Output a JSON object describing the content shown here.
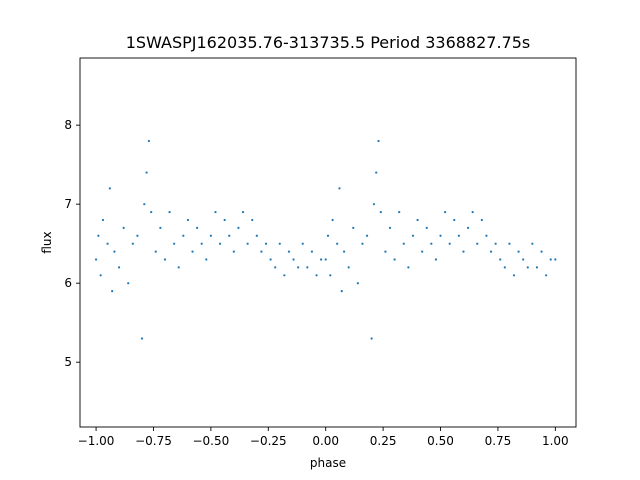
{
  "chart_data": {
    "type": "scatter",
    "title": "1SWASPJ162035.76-313735.5 Period 3368827.75s",
    "xlabel": "phase",
    "ylabel": "flux",
    "xlim": [
      -1.07,
      1.09
    ],
    "ylim": [
      4.18,
      8.85
    ],
    "x_ticks": [
      -1.0,
      -0.75,
      -0.5,
      -0.25,
      0.0,
      0.25,
      0.5,
      0.75,
      1.0
    ],
    "x_tick_labels": [
      "−1.00",
      "−0.75",
      "−0.50",
      "−0.25",
      "0.00",
      "0.25",
      "0.50",
      "0.75",
      "1.00"
    ],
    "y_ticks": [
      5,
      6,
      7,
      8
    ],
    "y_tick_labels": [
      "5",
      "6",
      "7",
      "8"
    ],
    "grid": false,
    "legend": "none",
    "marker_color": "#1f77b4",
    "series": [
      {
        "points": [
          [
            -1.0,
            6.3
          ],
          [
            -0.99,
            6.6
          ],
          [
            -0.98,
            6.1
          ],
          [
            -0.97,
            6.8
          ],
          [
            -0.95,
            6.5
          ],
          [
            -0.94,
            7.2
          ],
          [
            -0.93,
            5.9
          ],
          [
            -0.92,
            6.4
          ],
          [
            -0.9,
            6.2
          ],
          [
            -0.88,
            6.7
          ],
          [
            -0.86,
            6.0
          ],
          [
            -0.84,
            6.5
          ],
          [
            -0.82,
            6.6
          ],
          [
            -0.8,
            5.3
          ],
          [
            -0.79,
            7.0
          ],
          [
            -0.78,
            7.4
          ],
          [
            -0.77,
            7.8
          ],
          [
            -0.76,
            6.9
          ],
          [
            -0.74,
            6.4
          ],
          [
            -0.72,
            6.7
          ],
          [
            -0.7,
            6.3
          ],
          [
            -0.68,
            6.9
          ],
          [
            -0.66,
            6.5
          ],
          [
            -0.64,
            6.2
          ],
          [
            -0.62,
            6.6
          ],
          [
            -0.6,
            6.8
          ],
          [
            -0.58,
            6.4
          ],
          [
            -0.56,
            6.7
          ],
          [
            -0.54,
            6.5
          ],
          [
            -0.52,
            6.3
          ],
          [
            -0.5,
            6.6
          ],
          [
            -0.48,
            6.9
          ],
          [
            -0.46,
            6.5
          ],
          [
            -0.44,
            6.8
          ],
          [
            -0.42,
            6.6
          ],
          [
            -0.4,
            6.4
          ],
          [
            -0.38,
            6.7
          ],
          [
            -0.36,
            6.9
          ],
          [
            -0.34,
            6.5
          ],
          [
            -0.32,
            6.8
          ],
          [
            -0.3,
            6.6
          ],
          [
            -0.28,
            6.4
          ],
          [
            -0.26,
            6.5
          ],
          [
            -0.24,
            6.3
          ],
          [
            -0.22,
            6.2
          ],
          [
            -0.2,
            6.5
          ],
          [
            -0.18,
            6.1
          ],
          [
            -0.16,
            6.4
          ],
          [
            -0.14,
            6.3
          ],
          [
            -0.12,
            6.2
          ],
          [
            -0.1,
            6.5
          ],
          [
            -0.08,
            6.2
          ],
          [
            -0.06,
            6.4
          ],
          [
            -0.04,
            6.1
          ],
          [
            -0.02,
            6.3
          ],
          [
            0.0,
            6.3
          ],
          [
            0.01,
            6.6
          ],
          [
            0.02,
            6.1
          ],
          [
            0.03,
            6.8
          ],
          [
            0.05,
            6.5
          ],
          [
            0.06,
            7.2
          ],
          [
            0.07,
            5.9
          ],
          [
            0.08,
            6.4
          ],
          [
            0.1,
            6.2
          ],
          [
            0.12,
            6.7
          ],
          [
            0.14,
            6.0
          ],
          [
            0.16,
            6.5
          ],
          [
            0.18,
            6.6
          ],
          [
            0.2,
            5.3
          ],
          [
            0.21,
            7.0
          ],
          [
            0.22,
            7.4
          ],
          [
            0.23,
            7.8
          ],
          [
            0.24,
            6.9
          ],
          [
            0.26,
            6.4
          ],
          [
            0.28,
            6.7
          ],
          [
            0.3,
            6.3
          ],
          [
            0.32,
            6.9
          ],
          [
            0.34,
            6.5
          ],
          [
            0.36,
            6.2
          ],
          [
            0.38,
            6.6
          ],
          [
            0.4,
            6.8
          ],
          [
            0.42,
            6.4
          ],
          [
            0.44,
            6.7
          ],
          [
            0.46,
            6.5
          ],
          [
            0.48,
            6.3
          ],
          [
            0.5,
            6.6
          ],
          [
            0.52,
            6.9
          ],
          [
            0.54,
            6.5
          ],
          [
            0.56,
            6.8
          ],
          [
            0.58,
            6.6
          ],
          [
            0.6,
            6.4
          ],
          [
            0.62,
            6.7
          ],
          [
            0.64,
            6.9
          ],
          [
            0.66,
            6.5
          ],
          [
            0.68,
            6.8
          ],
          [
            0.7,
            6.6
          ],
          [
            0.72,
            6.4
          ],
          [
            0.74,
            6.5
          ],
          [
            0.76,
            6.3
          ],
          [
            0.78,
            6.2
          ],
          [
            0.8,
            6.5
          ],
          [
            0.82,
            6.1
          ],
          [
            0.84,
            6.4
          ],
          [
            0.86,
            6.3
          ],
          [
            0.88,
            6.2
          ],
          [
            0.9,
            6.5
          ],
          [
            0.92,
            6.2
          ],
          [
            0.94,
            6.4
          ],
          [
            0.96,
            6.1
          ],
          [
            0.98,
            6.3
          ],
          [
            1.0,
            6.3
          ]
        ]
      }
    ]
  }
}
